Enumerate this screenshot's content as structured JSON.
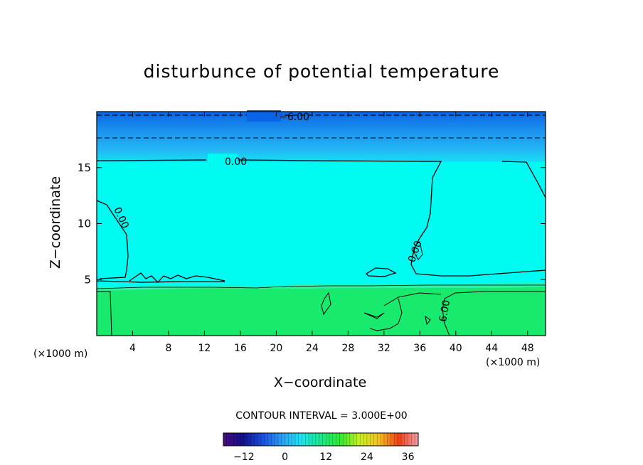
{
  "chart_data": {
    "type": "heatmap",
    "title": "disturbunce of potential temperature",
    "xlabel": "X−coordinate",
    "ylabel": "Z−coordinate",
    "x_unit_label": "(×1000 m)",
    "xlim": [
      0,
      50
    ],
    "ylim": [
      0,
      20
    ],
    "x_ticks": [
      4,
      8,
      12,
      16,
      20,
      24,
      28,
      32,
      36,
      40,
      44,
      48
    ],
    "y_ticks": [
      5,
      10,
      15
    ],
    "contour_interval_label": "CONTOUR INTERVAL = 3.000E+00",
    "contour_interval": 3.0,
    "contour_labels": [
      "−6.00",
      "0.00",
      "0.00",
      "0.00",
      "6.00"
    ],
    "colorbar": {
      "range": [
        -18,
        39
      ],
      "ticks": [
        -12,
        0,
        12,
        24,
        36
      ]
    },
    "regions": [
      {
        "z_range": [
          18,
          20
        ],
        "value": -6
      },
      {
        "z_range": [
          15.5,
          18
        ],
        "value": -3
      },
      {
        "z_range": [
          4.5,
          15.5
        ],
        "value": 0
      },
      {
        "z_range": [
          0,
          4.5
        ],
        "value": 6
      }
    ],
    "colors": {
      "deep_blue": "#0a7fe8",
      "sky_blue": "#26c3f5",
      "cyan": "#00fbf3",
      "green": "#18ea6e"
    }
  }
}
